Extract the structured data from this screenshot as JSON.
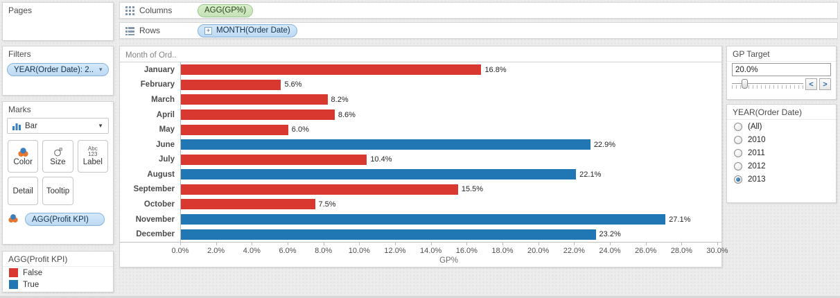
{
  "shelves": {
    "columns": {
      "label": "Columns",
      "pills": [
        {
          "text": "AGG(GP%)",
          "type": "measure"
        }
      ]
    },
    "rows": {
      "label": "Rows",
      "pills": [
        {
          "text": "MONTH(Order Date)",
          "type": "dimension",
          "expandable": true
        }
      ]
    }
  },
  "left_panel": {
    "pages": {
      "title": "Pages"
    },
    "filters": {
      "title": "Filters",
      "pills": [
        {
          "text": "YEAR(Order Date): 2.."
        }
      ]
    },
    "marks": {
      "title": "Marks",
      "mark_type": "Bar",
      "buttons": [
        {
          "label": "Color"
        },
        {
          "label": "Size"
        },
        {
          "label": "Label"
        },
        {
          "label": "Detail"
        },
        {
          "label": "Tooltip"
        }
      ],
      "label_icon": {
        "line1": "Abc",
        "line2": "123"
      },
      "encodings": [
        {
          "text": "AGG(Profit KPI)",
          "role": "color"
        }
      ]
    },
    "legend": {
      "title": "AGG(Profit KPI)",
      "items": [
        {
          "label": "False",
          "color": "#d93831"
        },
        {
          "label": "True",
          "color": "#2077b4"
        }
      ]
    }
  },
  "right_panel": {
    "gp_target": {
      "title": "GP Target",
      "value": "20.0%",
      "slider_pct": 14
    },
    "year_filter": {
      "title": "YEAR(Order Date)",
      "options": [
        {
          "label": "(All)",
          "selected": false
        },
        {
          "label": "2010",
          "selected": false
        },
        {
          "label": "2011",
          "selected": false
        },
        {
          "label": "2012",
          "selected": false
        },
        {
          "label": "2013",
          "selected": true
        }
      ]
    }
  },
  "chart_data": {
    "type": "bar",
    "orientation": "horizontal",
    "row_header": "Month of Ord..",
    "categories": [
      "January",
      "February",
      "March",
      "April",
      "May",
      "June",
      "July",
      "August",
      "September",
      "October",
      "November",
      "December"
    ],
    "values": [
      16.8,
      5.6,
      8.2,
      8.6,
      6.0,
      22.9,
      10.4,
      22.1,
      15.5,
      7.5,
      27.1,
      23.2
    ],
    "labels": [
      "16.8%",
      "5.6%",
      "8.2%",
      "8.6%",
      "6.0%",
      "22.9%",
      "10.4%",
      "22.1%",
      "15.5%",
      "7.5%",
      "27.1%",
      "23.2%"
    ],
    "profit_kpi": [
      false,
      false,
      false,
      false,
      false,
      true,
      false,
      true,
      false,
      false,
      true,
      true
    ],
    "color_map": {
      "false": "#d93831",
      "true": "#2077b4"
    },
    "xlabel": "GP%",
    "xlim": [
      0,
      30
    ],
    "tick_step": 2,
    "tick_labels": [
      "0.0%",
      "2.0%",
      "4.0%",
      "6.0%",
      "8.0%",
      "10.0%",
      "12.0%",
      "14.0%",
      "16.0%",
      "18.0%",
      "20.0%",
      "22.0%",
      "24.0%",
      "26.0%",
      "28.0%",
      "30.0%"
    ],
    "grid": false,
    "legend_position": "bottom-left"
  }
}
